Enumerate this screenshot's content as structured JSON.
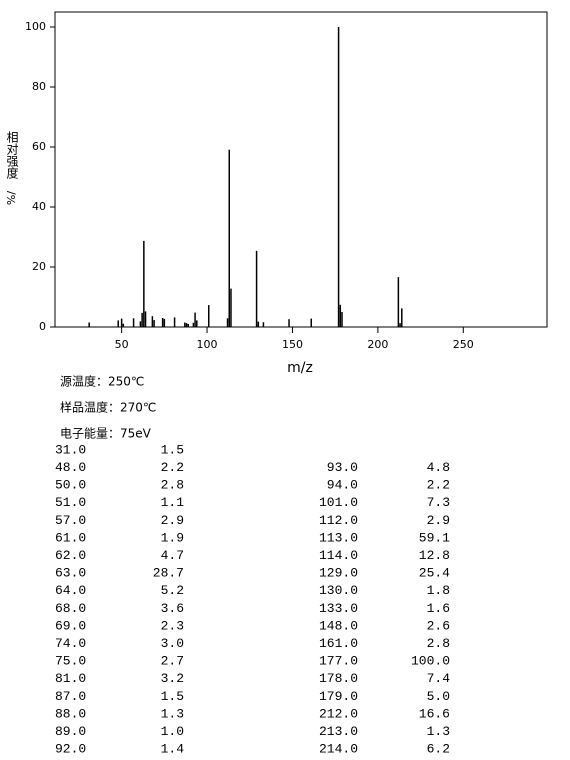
{
  "chart_data": {
    "type": "bar",
    "xlabel": "m/z",
    "ylabel": "相对强度",
    "ylabel_unit": "%/",
    "x": [
      31,
      48,
      50,
      51,
      57,
      61,
      62,
      63,
      64,
      68,
      69,
      74,
      75,
      81,
      87,
      88,
      89,
      92,
      93,
      94,
      101,
      112,
      113,
      114,
      129,
      130,
      133,
      148,
      161,
      177,
      178,
      179,
      212,
      213,
      214
    ],
    "values": [
      1.5,
      2.2,
      2.8,
      1.1,
      2.9,
      1.9,
      4.7,
      28.7,
      5.2,
      3.6,
      2.3,
      3.0,
      2.7,
      3.2,
      1.5,
      1.3,
      1.0,
      1.4,
      4.8,
      2.2,
      7.3,
      2.9,
      59.1,
      12.8,
      25.4,
      1.8,
      1.6,
      2.6,
      2.8,
      100.0,
      7.4,
      5.0,
      16.6,
      1.3,
      6.2
    ],
    "color": "#000000",
    "xlim": [
      11,
      299
    ],
    "xticks": [
      50,
      100,
      150,
      200,
      250
    ],
    "ylim": [
      0,
      105
    ],
    "yticks": [
      0,
      20,
      40,
      60,
      80,
      100
    ]
  },
  "info": [
    "源温度：250℃",
    "样品温度：270℃",
    "电子能量：75eV"
  ],
  "table": {
    "left": [
      [
        "31.0",
        "1.5"
      ],
      [
        "48.0",
        "2.2"
      ],
      [
        "50.0",
        "2.8"
      ],
      [
        "51.0",
        "1.1"
      ],
      [
        "57.0",
        "2.9"
      ],
      [
        "61.0",
        "1.9"
      ],
      [
        "62.0",
        "4.7"
      ],
      [
        "63.0",
        "28.7"
      ],
      [
        "64.0",
        "5.2"
      ],
      [
        "68.0",
        "3.6"
      ],
      [
        "69.0",
        "2.3"
      ],
      [
        "74.0",
        "3.0"
      ],
      [
        "75.0",
        "2.7"
      ],
      [
        "81.0",
        "3.2"
      ],
      [
        "87.0",
        "1.5"
      ],
      [
        "88.0",
        "1.3"
      ],
      [
        "89.0",
        "1.0"
      ],
      [
        "92.0",
        "1.4"
      ]
    ],
    "right": [
      [
        "93.0",
        "4.8"
      ],
      [
        "94.0",
        "2.2"
      ],
      [
        "101.0",
        "7.3"
      ],
      [
        "112.0",
        "2.9"
      ],
      [
        "113.0",
        "59.1"
      ],
      [
        "114.0",
        "12.8"
      ],
      [
        "129.0",
        "25.4"
      ],
      [
        "130.0",
        "1.8"
      ],
      [
        "133.0",
        "1.6"
      ],
      [
        "148.0",
        "2.6"
      ],
      [
        "161.0",
        "2.8"
      ],
      [
        "177.0",
        "100.0"
      ],
      [
        "178.0",
        "7.4"
      ],
      [
        "179.0",
        "5.0"
      ],
      [
        "212.0",
        "16.6"
      ],
      [
        "213.0",
        "1.3"
      ],
      [
        "214.0",
        "6.2"
      ]
    ]
  }
}
